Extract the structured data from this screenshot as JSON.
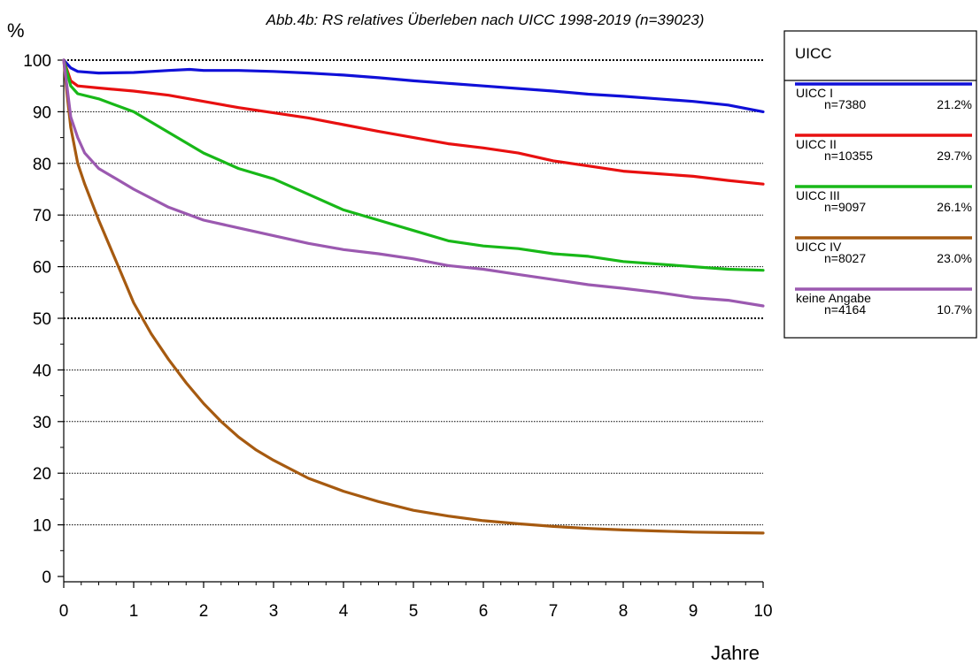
{
  "chart_data": {
    "type": "line",
    "title": "Abb.4b: RS relatives Überleben nach UICC  1998-2019 (n=39023)",
    "ylabel": "%",
    "xlabel": "Jahre",
    "xlim": [
      0,
      10
    ],
    "ylim": [
      0,
      100
    ],
    "x_ticks": [
      "0",
      "1",
      "2",
      "3",
      "4",
      "5",
      "6",
      "7",
      "8",
      "9",
      "10"
    ],
    "y_ticks": [
      "0",
      "10",
      "20",
      "30",
      "40",
      "50",
      "60",
      "70",
      "80",
      "90",
      "100"
    ],
    "grid": "horizontal dotted at every 10; 50 and 100 bold",
    "legend": {
      "title": "UICC",
      "position": "right"
    },
    "series": [
      {
        "name": "UICC I",
        "n": "n=7380",
        "pct": "21.2%",
        "color": "#1010d8",
        "x": [
          0,
          0.1,
          0.2,
          0.5,
          1,
          1.5,
          1.8,
          2,
          2.5,
          3,
          3.5,
          4,
          4.5,
          5,
          5.5,
          6,
          6.5,
          7,
          7.5,
          8,
          8.5,
          9,
          9.5,
          10
        ],
        "y": [
          100,
          98.5,
          97.8,
          97.5,
          97.6,
          98.0,
          98.2,
          98.0,
          98.0,
          97.8,
          97.5,
          97.1,
          96.6,
          96.0,
          95.5,
          95.0,
          94.5,
          94.0,
          93.4,
          93.0,
          92.5,
          92.0,
          91.3,
          90.0
        ]
      },
      {
        "name": "UICC II",
        "n": "n=10355",
        "pct": "29.7%",
        "color": "#e81010",
        "x": [
          0,
          0.1,
          0.2,
          0.5,
          1,
          1.5,
          2,
          2.5,
          3,
          3.5,
          4,
          4.5,
          5,
          5.5,
          6,
          6.5,
          7,
          7.5,
          8,
          8.5,
          9,
          9.5,
          10
        ],
        "y": [
          100,
          96,
          95.0,
          94.6,
          94.0,
          93.2,
          92.0,
          90.8,
          89.8,
          88.8,
          87.5,
          86.2,
          85.0,
          83.8,
          83.0,
          82.0,
          80.5,
          79.5,
          78.5,
          78.0,
          77.5,
          76.7,
          76.0
        ]
      },
      {
        "name": "UICC III",
        "n": "n=9097",
        "pct": "26.1%",
        "color": "#18b818",
        "x": [
          0,
          0.1,
          0.2,
          0.5,
          1,
          1.5,
          2,
          2.5,
          3,
          3.5,
          4,
          4.5,
          5,
          5.5,
          6,
          6.5,
          7,
          7.5,
          8,
          8.5,
          9,
          9.5,
          10
        ],
        "y": [
          100,
          95,
          93.5,
          92.5,
          90.0,
          86.0,
          82.0,
          79.0,
          77.0,
          74.0,
          71.0,
          69.0,
          67.0,
          65.0,
          64.0,
          63.5,
          62.5,
          62.0,
          61.0,
          60.5,
          60.0,
          59.5,
          59.3
        ]
      },
      {
        "name": "UICC IV",
        "n": "n=8027",
        "pct": "23.0%",
        "color": "#a65a10",
        "x": [
          0,
          0.05,
          0.1,
          0.2,
          0.3,
          0.5,
          0.75,
          1,
          1.25,
          1.5,
          1.75,
          2,
          2.25,
          2.5,
          2.75,
          3,
          3.5,
          4,
          4.5,
          5,
          5.5,
          6,
          6.5,
          7,
          7.5,
          8,
          8.5,
          9,
          9.5,
          10
        ],
        "y": [
          100,
          93,
          87,
          80,
          76,
          69,
          61,
          53,
          47,
          42,
          37.5,
          33.5,
          30,
          27,
          24.5,
          22.5,
          19,
          16.5,
          14.5,
          12.8,
          11.7,
          10.8,
          10.2,
          9.7,
          9.3,
          9.0,
          8.8,
          8.6,
          8.5,
          8.4
        ]
      },
      {
        "name": "keine Angabe",
        "n": "n=4164",
        "pct": "10.7%",
        "color": "#9b59b0",
        "x": [
          0,
          0.1,
          0.2,
          0.3,
          0.5,
          0.75,
          1,
          1.5,
          2,
          2.5,
          3,
          3.5,
          4,
          4.5,
          5,
          5.5,
          6,
          6.5,
          7,
          7.5,
          8,
          8.5,
          9,
          9.5,
          10
        ],
        "y": [
          100,
          89,
          85,
          82,
          79,
          77,
          75,
          71.5,
          69,
          67.5,
          66,
          64.5,
          63.3,
          62.5,
          61.5,
          60.2,
          59.5,
          58.5,
          57.5,
          56.5,
          55.8,
          55,
          54,
          53.5,
          52.4
        ]
      }
    ]
  }
}
